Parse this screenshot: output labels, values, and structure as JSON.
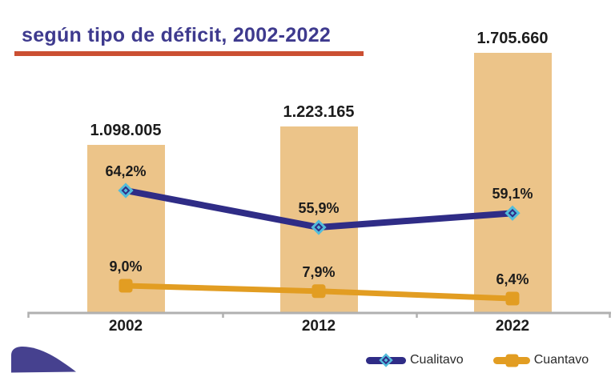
{
  "title": {
    "text": "según tipo de déficit, 2002-2022"
  },
  "colors": {
    "title_text": "#3e3a8e",
    "title_underline": "#cb4f32",
    "bar_fill": "#ecc489",
    "line_cualitavo": "#2f2c86",
    "line_cuantavo": "#e29d22",
    "marker_accent": "#52bcdb",
    "axis_line": "#b0b0b0",
    "label_text": "#1c1c1c",
    "legend_text": "#2b2b2b",
    "corner_decoration": "#46418f"
  },
  "chart_data": {
    "type": "combo bar + line",
    "categories": [
      "2002",
      "2012",
      "2022"
    ],
    "bar_series": {
      "values": [
        1098005,
        1223165,
        1705660
      ],
      "labels": [
        "1.098.005",
        "1.223.165",
        "1.705.660"
      ]
    },
    "line_series": [
      {
        "name": "Cualitavo",
        "marker": "diamond",
        "values": [
          64.2,
          55.9,
          59.1
        ],
        "labels": [
          "64,2%",
          "55,9%",
          "59,1%"
        ]
      },
      {
        "name": "Cuantavo",
        "marker": "square",
        "values": [
          9.0,
          7.9,
          6.4
        ],
        "labels": [
          "9,0%",
          "7,9%",
          "6,4%"
        ]
      }
    ],
    "axis": {
      "baseline_visible": true,
      "value_axis_visible": false,
      "gridlines": false,
      "tick_marks": "below baseline at category boundaries"
    },
    "legend_position": "bottom-right"
  }
}
